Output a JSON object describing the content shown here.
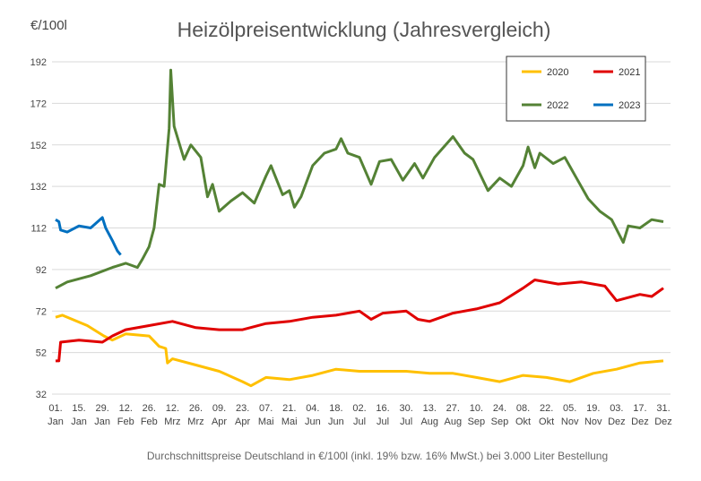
{
  "chart_data": {
    "type": "line",
    "title": "Heizölpreisentwicklung (Jahresvergleich)",
    "ylabel": "€/100l",
    "footnote": "Durchschnittspreise Deutschland in €/100l (inkl. 19% bzw. 16%  MwSt.) bei 3.000 Liter Bestellung",
    "ylim": [
      32,
      192
    ],
    "yticks": [
      192,
      172,
      152,
      132,
      112,
      92,
      72,
      52,
      32
    ],
    "xlim": [
      1,
      365
    ],
    "xticks": [
      {
        "day": 1,
        "l1": "01.",
        "l2": "Jan"
      },
      {
        "day": 15,
        "l1": "15.",
        "l2": "Jan"
      },
      {
        "day": 29,
        "l1": "29.",
        "l2": "Jan"
      },
      {
        "day": 43,
        "l1": "12.",
        "l2": "Feb"
      },
      {
        "day": 57,
        "l1": "26.",
        "l2": "Feb"
      },
      {
        "day": 71,
        "l1": "12.",
        "l2": "Mrz"
      },
      {
        "day": 85,
        "l1": "26.",
        "l2": "Mrz"
      },
      {
        "day": 99,
        "l1": "09.",
        "l2": "Apr"
      },
      {
        "day": 113,
        "l1": "23.",
        "l2": "Apr"
      },
      {
        "day": 127,
        "l1": "07.",
        "l2": "Mai"
      },
      {
        "day": 141,
        "l1": "21.",
        "l2": "Mai"
      },
      {
        "day": 155,
        "l1": "04.",
        "l2": "Jun"
      },
      {
        "day": 169,
        "l1": "18.",
        "l2": "Jun"
      },
      {
        "day": 183,
        "l1": "02.",
        "l2": "Jul"
      },
      {
        "day": 197,
        "l1": "16.",
        "l2": "Jul"
      },
      {
        "day": 211,
        "l1": "30.",
        "l2": "Jul"
      },
      {
        "day": 225,
        "l1": "13.",
        "l2": "Aug"
      },
      {
        "day": 239,
        "l1": "27.",
        "l2": "Aug"
      },
      {
        "day": 253,
        "l1": "10.",
        "l2": "Sep"
      },
      {
        "day": 267,
        "l1": "24.",
        "l2": "Sep"
      },
      {
        "day": 281,
        "l1": "08.",
        "l2": "Okt"
      },
      {
        "day": 295,
        "l1": "22.",
        "l2": "Okt"
      },
      {
        "day": 309,
        "l1": "05.",
        "l2": "Nov"
      },
      {
        "day": 323,
        "l1": "19.",
        "l2": "Nov"
      },
      {
        "day": 337,
        "l1": "03.",
        "l2": "Dez"
      },
      {
        "day": 351,
        "l1": "17.",
        "l2": "Dez"
      },
      {
        "day": 365,
        "l1": "31.",
        "l2": "Dez"
      }
    ],
    "grid": true,
    "legend": "top-right",
    "series": [
      {
        "name": "2020",
        "color": "#FFC000",
        "points": [
          [
            1,
            69
          ],
          [
            5,
            70
          ],
          [
            20,
            65
          ],
          [
            30,
            60
          ],
          [
            35,
            58
          ],
          [
            43,
            61
          ],
          [
            57,
            60
          ],
          [
            63,
            55
          ],
          [
            67,
            54
          ],
          [
            68,
            47
          ],
          [
            71,
            49
          ],
          [
            85,
            46
          ],
          [
            99,
            43
          ],
          [
            113,
            38
          ],
          [
            118,
            36
          ],
          [
            127,
            40
          ],
          [
            141,
            39
          ],
          [
            155,
            41
          ],
          [
            169,
            44
          ],
          [
            183,
            43
          ],
          [
            197,
            43
          ],
          [
            211,
            43
          ],
          [
            225,
            42
          ],
          [
            239,
            42
          ],
          [
            253,
            40
          ],
          [
            267,
            38
          ],
          [
            281,
            41
          ],
          [
            295,
            40
          ],
          [
            309,
            38
          ],
          [
            323,
            42
          ],
          [
            337,
            44
          ],
          [
            351,
            47
          ],
          [
            365,
            48
          ]
        ]
      },
      {
        "name": "2021",
        "color": "#E00000",
        "points": [
          [
            1,
            48
          ],
          [
            3,
            48
          ],
          [
            4,
            57
          ],
          [
            15,
            58
          ],
          [
            29,
            57
          ],
          [
            35,
            60
          ],
          [
            43,
            63
          ],
          [
            57,
            65
          ],
          [
            71,
            67
          ],
          [
            85,
            64
          ],
          [
            99,
            63
          ],
          [
            113,
            63
          ],
          [
            127,
            66
          ],
          [
            141,
            67
          ],
          [
            155,
            69
          ],
          [
            169,
            70
          ],
          [
            183,
            72
          ],
          [
            190,
            68
          ],
          [
            197,
            71
          ],
          [
            211,
            72
          ],
          [
            218,
            68
          ],
          [
            225,
            67
          ],
          [
            239,
            71
          ],
          [
            253,
            73
          ],
          [
            267,
            76
          ],
          [
            281,
            83
          ],
          [
            288,
            87
          ],
          [
            302,
            85
          ],
          [
            316,
            86
          ],
          [
            330,
            84
          ],
          [
            337,
            77
          ],
          [
            351,
            80
          ],
          [
            358,
            79
          ],
          [
            365,
            83
          ]
        ]
      },
      {
        "name": "2022",
        "color": "#548235",
        "points": [
          [
            1,
            83
          ],
          [
            8,
            86
          ],
          [
            22,
            89
          ],
          [
            35,
            93
          ],
          [
            43,
            95
          ],
          [
            50,
            93
          ],
          [
            53,
            97
          ],
          [
            57,
            103
          ],
          [
            60,
            112
          ],
          [
            63,
            133
          ],
          [
            66,
            132
          ],
          [
            69,
            160
          ],
          [
            70,
            188
          ],
          [
            72,
            161
          ],
          [
            78,
            145
          ],
          [
            82,
            152
          ],
          [
            88,
            146
          ],
          [
            92,
            127
          ],
          [
            95,
            133
          ],
          [
            99,
            120
          ],
          [
            106,
            125
          ],
          [
            113,
            129
          ],
          [
            120,
            124
          ],
          [
            127,
            137
          ],
          [
            130,
            142
          ],
          [
            137,
            128
          ],
          [
            141,
            130
          ],
          [
            144,
            122
          ],
          [
            148,
            127
          ],
          [
            155,
            142
          ],
          [
            162,
            148
          ],
          [
            169,
            150
          ],
          [
            172,
            155
          ],
          [
            176,
            148
          ],
          [
            183,
            146
          ],
          [
            190,
            133
          ],
          [
            195,
            144
          ],
          [
            202,
            145
          ],
          [
            209,
            135
          ],
          [
            216,
            143
          ],
          [
            221,
            136
          ],
          [
            228,
            146
          ],
          [
            239,
            156
          ],
          [
            246,
            148
          ],
          [
            251,
            145
          ],
          [
            260,
            130
          ],
          [
            267,
            136
          ],
          [
            274,
            132
          ],
          [
            281,
            142
          ],
          [
            284,
            151
          ],
          [
            288,
            141
          ],
          [
            291,
            148
          ],
          [
            299,
            143
          ],
          [
            306,
            146
          ],
          [
            313,
            136
          ],
          [
            320,
            126
          ],
          [
            327,
            120
          ],
          [
            334,
            116
          ],
          [
            341,
            105
          ],
          [
            344,
            113
          ],
          [
            351,
            112
          ],
          [
            358,
            116
          ],
          [
            365,
            115
          ]
        ]
      },
      {
        "name": "2023",
        "color": "#0070C0",
        "points": [
          [
            1,
            116
          ],
          [
            3,
            115
          ],
          [
            4,
            111
          ],
          [
            8,
            110
          ],
          [
            15,
            113
          ],
          [
            22,
            112
          ],
          [
            29,
            117
          ],
          [
            31,
            112
          ],
          [
            35,
            106
          ],
          [
            38,
            101
          ],
          [
            40,
            99
          ]
        ]
      }
    ]
  }
}
